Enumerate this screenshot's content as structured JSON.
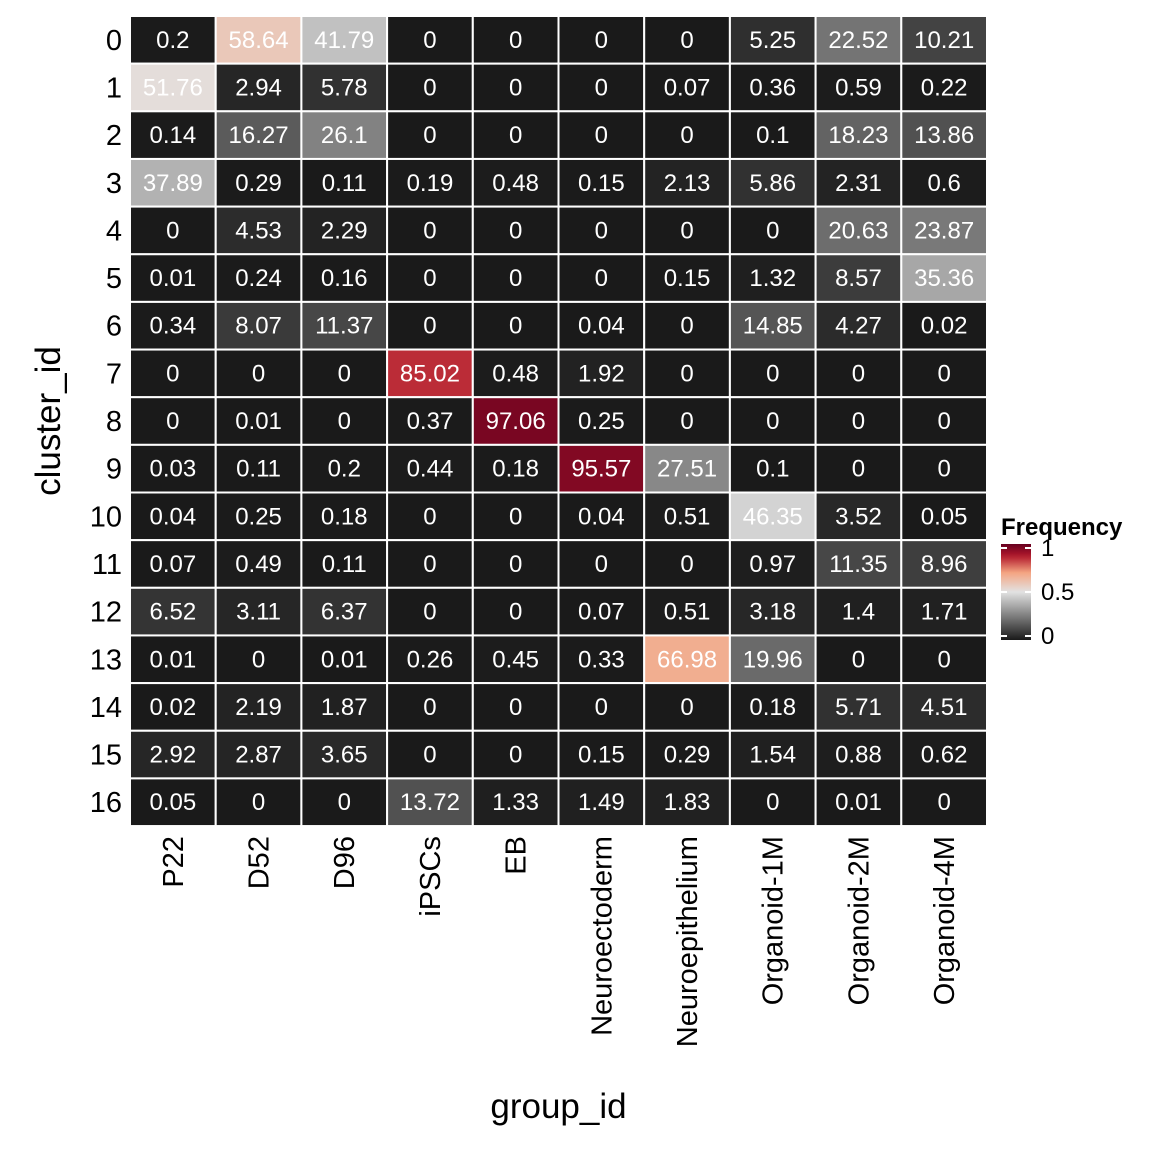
{
  "chart_data": {
    "type": "heatmap",
    "xlabel": "group_id",
    "ylabel": "cluster_id",
    "x_categories": [
      "P22",
      "D52",
      "D96",
      "iPSCs",
      "EB",
      "Neuroectoderm",
      "Neuroepithelium",
      "Organoid-1M",
      "Organoid-2M",
      "Organoid-4M"
    ],
    "y_categories": [
      "0",
      "1",
      "2",
      "3",
      "4",
      "5",
      "6",
      "7",
      "8",
      "9",
      "10",
      "11",
      "12",
      "13",
      "14",
      "15",
      "16"
    ],
    "values": [
      [
        "0.2",
        "58.64",
        "41.79",
        "0",
        "0",
        "0",
        "0",
        "5.25",
        "22.52",
        "10.21"
      ],
      [
        "51.76",
        "2.94",
        "5.78",
        "0",
        "0",
        "0",
        "0.07",
        "0.36",
        "0.59",
        "0.22"
      ],
      [
        "0.14",
        "16.27",
        "26.1",
        "0",
        "0",
        "0",
        "0",
        "0.1",
        "18.23",
        "13.86"
      ],
      [
        "37.89",
        "0.29",
        "0.11",
        "0.19",
        "0.48",
        "0.15",
        "2.13",
        "5.86",
        "2.31",
        "0.6"
      ],
      [
        "0",
        "4.53",
        "2.29",
        "0",
        "0",
        "0",
        "0",
        "0",
        "20.63",
        "23.87"
      ],
      [
        "0.01",
        "0.24",
        "0.16",
        "0",
        "0",
        "0",
        "0.15",
        "1.32",
        "8.57",
        "35.36"
      ],
      [
        "0.34",
        "8.07",
        "11.37",
        "0",
        "0",
        "0.04",
        "0",
        "14.85",
        "4.27",
        "0.02"
      ],
      [
        "0",
        "0",
        "0",
        "85.02",
        "0.48",
        "1.92",
        "0",
        "0",
        "0",
        "0"
      ],
      [
        "0",
        "0.01",
        "0",
        "0.37",
        "97.06",
        "0.25",
        "0",
        "0",
        "0",
        "0"
      ],
      [
        "0.03",
        "0.11",
        "0.2",
        "0.44",
        "0.18",
        "95.57",
        "27.51",
        "0.1",
        "0",
        "0"
      ],
      [
        "0.04",
        "0.25",
        "0.18",
        "0",
        "0",
        "0.04",
        "0.51",
        "46.35",
        "3.52",
        "0.05"
      ],
      [
        "0.07",
        "0.49",
        "0.11",
        "0",
        "0",
        "0",
        "0",
        "0.97",
        "11.35",
        "8.96"
      ],
      [
        "6.52",
        "3.11",
        "6.37",
        "0",
        "0",
        "0.07",
        "0.51",
        "3.18",
        "1.4",
        "1.71"
      ],
      [
        "0.01",
        "0",
        "0.01",
        "0.26",
        "0.45",
        "0.33",
        "66.98",
        "19.96",
        "0",
        "0"
      ],
      [
        "0.02",
        "2.19",
        "1.87",
        "0",
        "0",
        "0",
        "0",
        "0.18",
        "5.71",
        "4.51"
      ],
      [
        "2.92",
        "2.87",
        "3.65",
        "0",
        "0",
        "0.15",
        "0.29",
        "1.54",
        "0.88",
        "0.62"
      ],
      [
        "0.05",
        "0",
        "0",
        "13.72",
        "1.33",
        "1.49",
        "1.83",
        "0",
        "0.01",
        "0"
      ]
    ],
    "legend": {
      "title": "Frequency",
      "ticks": [
        "0",
        "0.5",
        "1"
      ],
      "placement": "right"
    },
    "color_scale": {
      "low": "#1a1a1a",
      "mid": "#e2e2e2",
      "high": "#67001f",
      "mid_point": 0.5
    },
    "grid_line_color": "#ffffff",
    "text_color": "#ffffff"
  }
}
